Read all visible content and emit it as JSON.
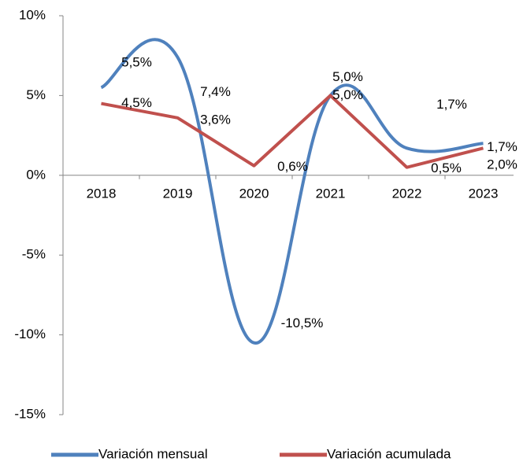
{
  "chart_data": {
    "type": "line",
    "categories": [
      "2018",
      "2019",
      "2020",
      "2021",
      "2022",
      "2023"
    ],
    "series": [
      {
        "name": "Variación mensual",
        "color": "#4f81bd",
        "smooth": true,
        "values": [
          5.5,
          7.4,
          -10.5,
          5.0,
          1.7,
          2.0
        ],
        "value_labels": [
          "5,5%",
          "7,4%",
          "-10,5%",
          "5,0%",
          "1,7%",
          "2,0%"
        ]
      },
      {
        "name": "Variación acumulada",
        "color": "#c0504d",
        "smooth": false,
        "values": [
          4.5,
          3.6,
          0.6,
          5.0,
          0.5,
          1.7
        ],
        "value_labels": [
          "4,5%",
          "3,6%",
          "0,6%",
          "5,0%",
          "0,5%",
          "1,7%"
        ]
      }
    ],
    "ylim": [
      -15,
      10
    ],
    "yticks": [
      {
        "value": -15,
        "label": "-15%"
      },
      {
        "value": -10,
        "label": "-10%"
      },
      {
        "value": -5,
        "label": "-5%"
      },
      {
        "value": 0,
        "label": "0%"
      },
      {
        "value": 5,
        "label": "5%"
      },
      {
        "value": 10,
        "label": "10%"
      }
    ],
    "grid": false,
    "legend": "bottom"
  }
}
